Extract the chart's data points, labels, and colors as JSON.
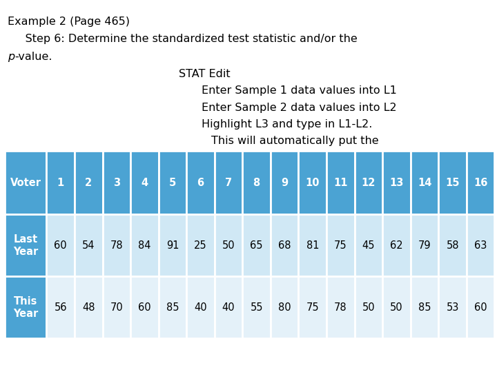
{
  "title_line1": "Example 2 (Page 465)",
  "title_line2": "     Step 6: Determine the standardized test statistic and/or the",
  "title_line3_italic": "p",
  "title_line3_rest": "-value.",
  "text_line1": "STAT Edit",
  "text_line2": "Enter Sample 1 data values into L1",
  "text_line3": "Enter Sample 2 data values into L2",
  "text_line4": "Highlight L3 and type in L1-L2.",
  "text_line5": "This will automatically put the",
  "columns": [
    "Voter",
    "1",
    "2",
    "3",
    "4",
    "5",
    "6",
    "7",
    "8",
    "9",
    "10",
    "11",
    "12",
    "13",
    "14",
    "15",
    "16"
  ],
  "row1_label": "Last\nYear",
  "row2_label": "This\nYear",
  "row1_data": [
    60,
    54,
    78,
    84,
    91,
    25,
    50,
    65,
    68,
    81,
    75,
    45,
    62,
    79,
    58,
    63
  ],
  "row2_data": [
    56,
    48,
    70,
    60,
    85,
    40,
    40,
    55,
    80,
    75,
    78,
    50,
    50,
    85,
    53,
    60
  ],
  "header_color": "#4ba3d3",
  "row1_label_color": "#4ba3d3",
  "row2_label_color": "#4ba3d3",
  "row1_data_bg": "#d0e8f5",
  "row2_data_bg": "#e4f1f9",
  "border_color": "#ffffff",
  "font_size_text": 11.5,
  "font_size_table": 10.5
}
